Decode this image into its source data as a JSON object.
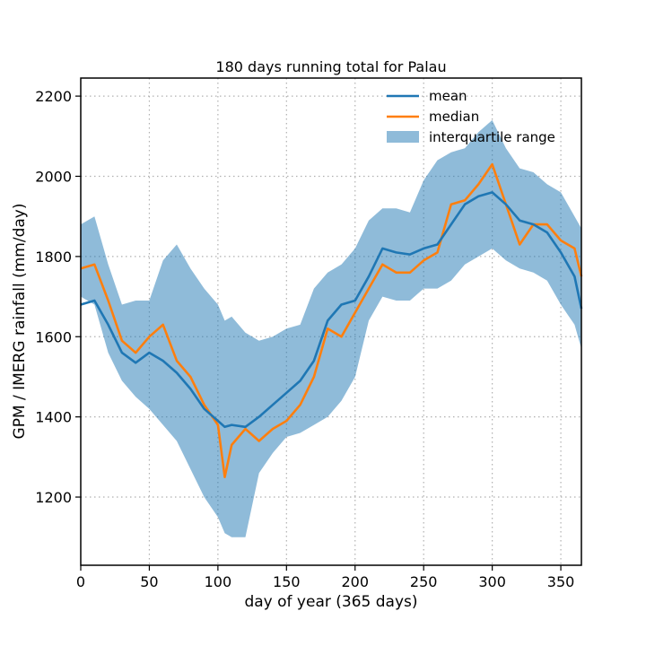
{
  "chart_data": {
    "type": "line",
    "title": "180 days running total for Palau",
    "xlabel": "day of year (365 days)",
    "ylabel": "GPM / IMERG rainfall (mm/day)",
    "xlim": [
      0,
      365
    ],
    "ylim": [
      1030,
      2245
    ],
    "xticks": [
      0,
      50,
      100,
      150,
      200,
      250,
      300,
      350
    ],
    "yticks": [
      1200,
      1400,
      1600,
      1800,
      2000,
      2200
    ],
    "grid": true,
    "legend_position": "top-right",
    "legend": [
      "mean",
      "median",
      "interquartile range"
    ],
    "colors": {
      "mean": "#1f77b4",
      "median": "#ff7f0e",
      "iqr": "#1f77b4"
    },
    "x": [
      0,
      10,
      20,
      30,
      40,
      50,
      60,
      70,
      80,
      90,
      100,
      105,
      110,
      120,
      130,
      140,
      150,
      160,
      170,
      180,
      190,
      200,
      210,
      220,
      230,
      240,
      250,
      260,
      270,
      280,
      290,
      300,
      310,
      320,
      330,
      340,
      350,
      360,
      365
    ],
    "series": [
      {
        "name": "mean",
        "values": [
          1680,
          1690,
          1630,
          1560,
          1535,
          1560,
          1540,
          1510,
          1470,
          1420,
          1390,
          1375,
          1380,
          1375,
          1400,
          1430,
          1460,
          1490,
          1540,
          1640,
          1680,
          1690,
          1750,
          1820,
          1810,
          1805,
          1820,
          1830,
          1880,
          1930,
          1950,
          1960,
          1930,
          1890,
          1880,
          1860,
          1810,
          1750,
          1670
        ]
      },
      {
        "name": "median",
        "values": [
          1770,
          1780,
          1690,
          1590,
          1560,
          1600,
          1630,
          1540,
          1500,
          1430,
          1380,
          1250,
          1330,
          1370,
          1340,
          1370,
          1390,
          1430,
          1500,
          1620,
          1600,
          1660,
          1720,
          1780,
          1760,
          1760,
          1790,
          1810,
          1930,
          1940,
          1980,
          2030,
          1930,
          1830,
          1880,
          1880,
          1840,
          1820,
          1750
        ]
      }
    ],
    "iqr": {
      "name": "interquartile range",
      "upper": [
        1880,
        1900,
        1780,
        1680,
        1690,
        1690,
        1790,
        1830,
        1770,
        1720,
        1680,
        1640,
        1650,
        1610,
        1590,
        1600,
        1620,
        1630,
        1720,
        1760,
        1780,
        1820,
        1890,
        1920,
        1920,
        1910,
        1990,
        2040,
        2060,
        2070,
        2110,
        2140,
        2070,
        2020,
        2010,
        1980,
        1960,
        1900,
        1870
      ],
      "lower": [
        1700,
        1680,
        1560,
        1490,
        1450,
        1420,
        1380,
        1340,
        1270,
        1200,
        1150,
        1110,
        1100,
        1100,
        1260,
        1310,
        1350,
        1360,
        1380,
        1400,
        1440,
        1500,
        1640,
        1700,
        1690,
        1690,
        1720,
        1720,
        1740,
        1780,
        1800,
        1820,
        1790,
        1770,
        1760,
        1740,
        1680,
        1630,
        1570
      ]
    }
  }
}
